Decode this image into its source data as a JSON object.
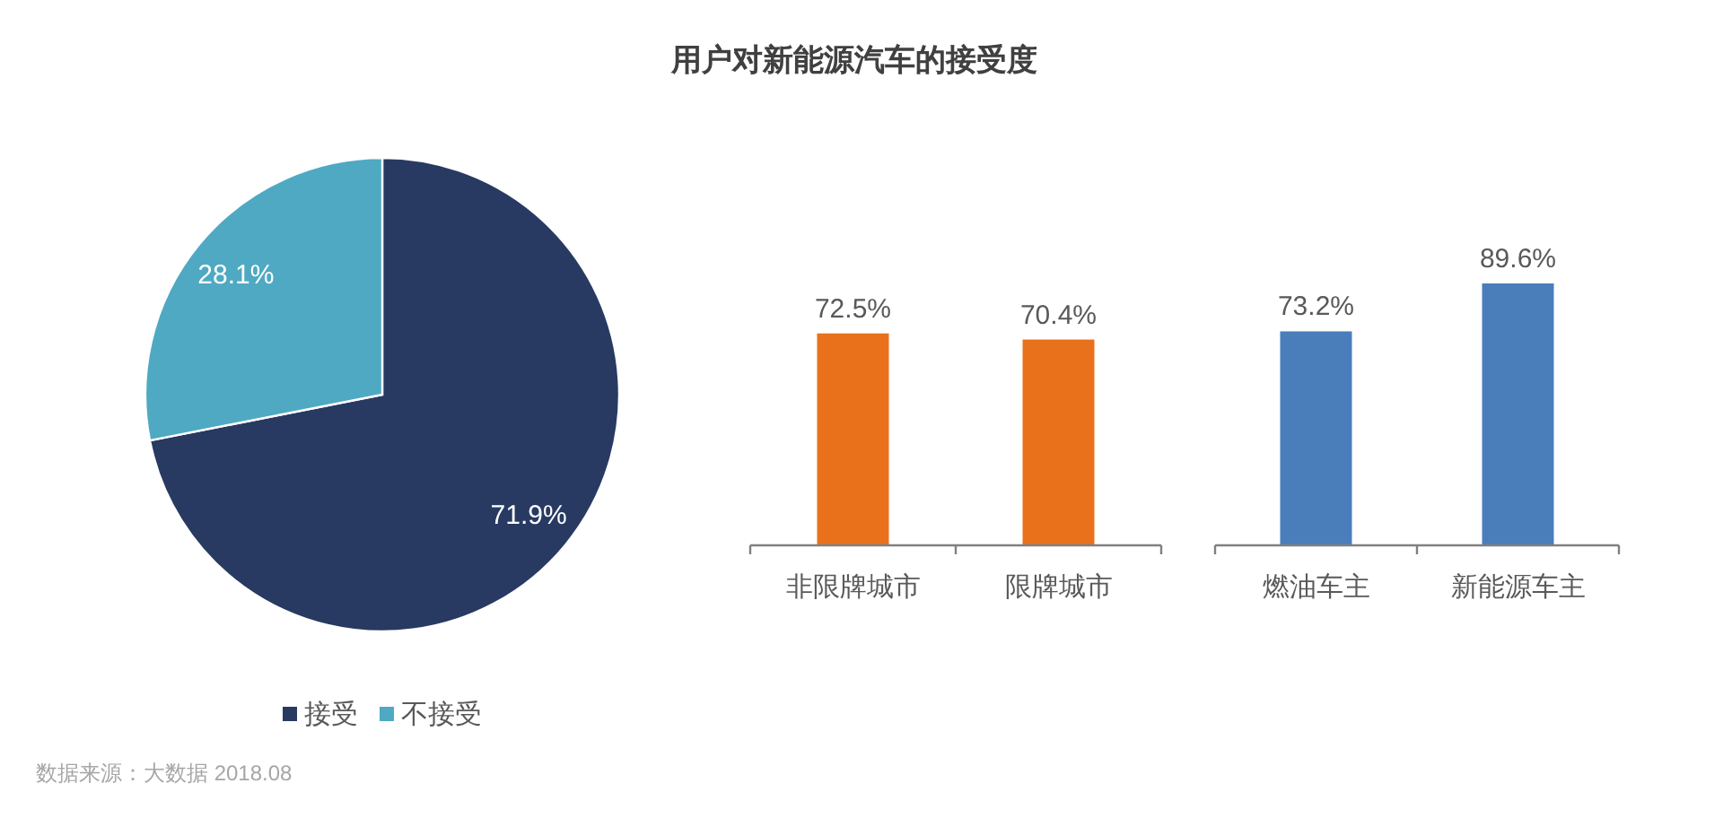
{
  "chart_data": [
    {
      "type": "pie",
      "title": "用户对新能源汽车的接受度",
      "categories": [
        "接受",
        "不接受"
      ],
      "values": [
        71.9,
        28.1
      ],
      "colors": [
        "#283a62",
        "#4fa9c3"
      ],
      "value_labels": [
        "71.9%",
        "28.1%"
      ],
      "legend": "bottom",
      "annotations": [
        "数据来源：大数据 2018.08"
      ]
    },
    {
      "type": "bar",
      "categories": [
        "非限牌城市",
        "限牌城市"
      ],
      "values": [
        72.5,
        70.4
      ],
      "color": "#e9711c",
      "value_labels": [
        "72.5%",
        "70.4%"
      ]
    },
    {
      "type": "bar",
      "categories": [
        "燃油车主",
        "新能源车主"
      ],
      "values": [
        73.2,
        89.6
      ],
      "color": "#4a7ebb",
      "value_labels": [
        "73.2%",
        "89.6%"
      ]
    }
  ]
}
